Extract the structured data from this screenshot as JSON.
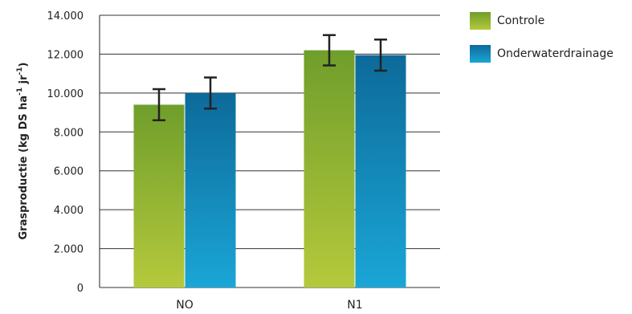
{
  "chart_data": {
    "type": "bar",
    "categories": [
      "NO",
      "N1"
    ],
    "series": [
      {
        "name": "Controle",
        "values": [
          9400,
          12200
        ],
        "errors": [
          800,
          780
        ],
        "color_top": "#6f9e2b",
        "color_bottom": "#b5c93c"
      },
      {
        "name": "Onderwaterdrainage",
        "values": [
          10000,
          11950
        ],
        "errors": [
          800,
          800
        ],
        "color_top": "#0d6a9a",
        "color_bottom": "#1aa6d6"
      }
    ],
    "ylabel_main": "Grasproductie (kg DS ha",
    "ylabel_sup1": "-1",
    "ylabel_mid": " jr",
    "ylabel_sup2": "-1",
    "ylabel_end": ")",
    "ylim": [
      0,
      14000
    ],
    "yticks": [
      0,
      2000,
      4000,
      6000,
      8000,
      10000,
      12000,
      14000
    ],
    "ytick_labels": [
      "0",
      "2.000",
      "4.000",
      "6.000",
      "8.000",
      "10.000",
      "12.000",
      "14.000"
    ],
    "grid": true,
    "legend_position": "top-right"
  }
}
